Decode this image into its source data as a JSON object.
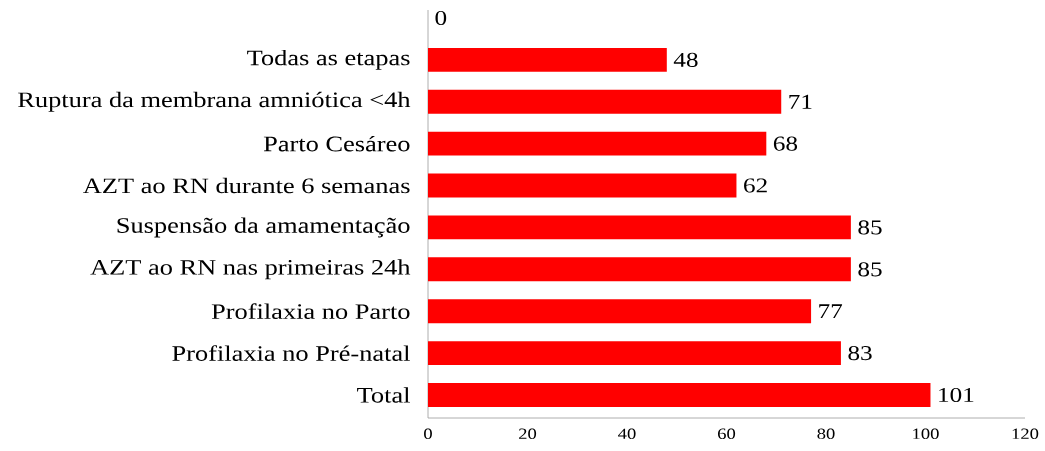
{
  "chart_data": {
    "type": "bar",
    "orientation": "horizontal",
    "categories": [
      null,
      "Todas as etapas",
      "Ruptura da membrana amniótica <4h",
      "Parto Cesáreo",
      "AZT ao RN durante 6 semanas",
      "Suspensão da amamentação",
      "AZT ao RN nas primeiras 24h",
      "Profilaxia no Parto",
      "Profilaxia no Pré-natal",
      "Total"
    ],
    "values": [
      0,
      48,
      71,
      68,
      62,
      85,
      85,
      77,
      83,
      101
    ],
    "color": "#ff0000",
    "xlim": [
      0,
      120
    ],
    "xticks": [
      0,
      20,
      40,
      60,
      80,
      100,
      120
    ],
    "data_labels": true
  }
}
